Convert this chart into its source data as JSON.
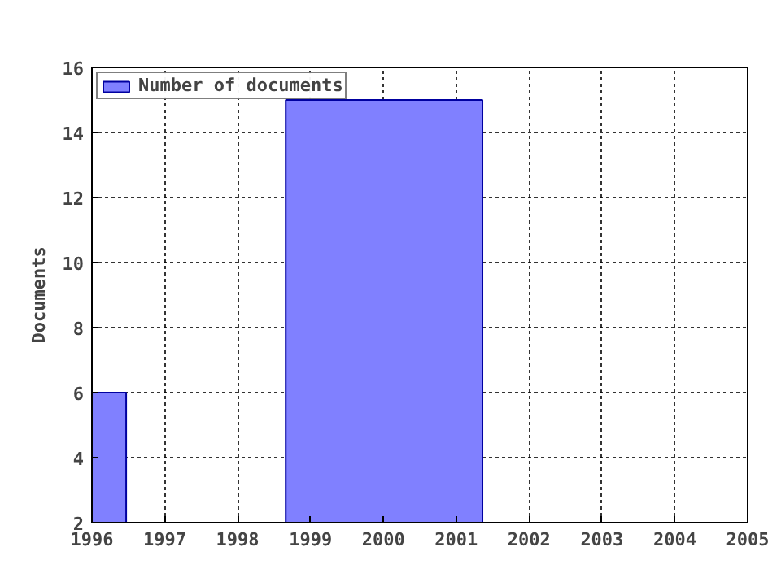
{
  "chart_data": {
    "type": "histogram",
    "ylabel": "Documents",
    "bins": [
      1996,
      1996.47,
      1998.66,
      2001.36
    ],
    "series": [
      {
        "name": "Number of documents",
        "color": "#8080ff",
        "values": [
          6,
          null,
          15
        ]
      }
    ],
    "xlim": [
      1996,
      2005
    ],
    "xticks": [
      1996,
      1997,
      1998,
      1999,
      2000,
      2001,
      2002,
      2003,
      2004,
      2005
    ],
    "ylim": [
      2,
      16
    ],
    "yticks": [
      2,
      4,
      6,
      8,
      10,
      12,
      14,
      16
    ],
    "grid": true,
    "legend": "top left"
  }
}
